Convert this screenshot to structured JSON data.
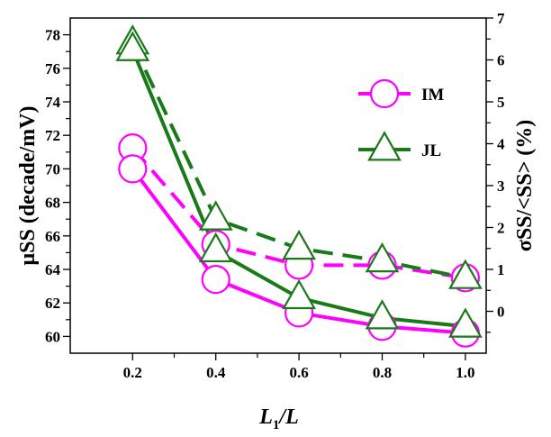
{
  "chart_data": {
    "type": "line",
    "x": [
      0.2,
      0.4,
      0.6,
      0.8,
      1.0
    ],
    "xlabel_main": "L",
    "xlabel_sub": "1",
    "xlabel_tail": "/L",
    "ylabel_left": "μSS (decade/mV)",
    "ylabel_right": "σSS/<SS> (%)",
    "xlim": [
      0.05,
      1.05
    ],
    "ylim_left": [
      59,
      79
    ],
    "ylim_right": [
      -1,
      7
    ],
    "x_ticks": [
      "0.2",
      "0.4",
      "0.6",
      "0.8",
      "1.0"
    ],
    "y_left_ticks": [
      "60",
      "62",
      "64",
      "66",
      "68",
      "70",
      "72",
      "74",
      "76",
      "78"
    ],
    "y_right_ticks": [
      "0",
      "1",
      "2",
      "3",
      "4",
      "5",
      "6",
      "7"
    ],
    "legend_position": "top-right",
    "series": [
      {
        "name": "IM",
        "axis": "left",
        "style": "solid",
        "color": "#ff00ff",
        "marker": "circle",
        "values": [
          70.0,
          63.4,
          61.4,
          60.6,
          60.2
        ]
      },
      {
        "name": "JL",
        "axis": "left",
        "style": "solid",
        "color": "#1a7a1a",
        "marker": "triangle",
        "values": [
          77.1,
          65.1,
          62.3,
          61.1,
          60.6
        ]
      },
      {
        "name": "IM",
        "axis": "right",
        "style": "dashed",
        "color": "#ff00ff",
        "marker": "circle",
        "values": [
          3.9,
          1.6,
          1.1,
          1.1,
          0.8
        ]
      },
      {
        "name": "JL",
        "axis": "right",
        "style": "dashed",
        "color": "#1a7a1a",
        "marker": "triangle",
        "values": [
          6.4,
          2.2,
          1.5,
          1.2,
          0.8
        ]
      }
    ],
    "legend": [
      {
        "label": "IM",
        "color": "#ff00ff",
        "marker": "circle"
      },
      {
        "label": "JL",
        "color": "#1a7a1a",
        "marker": "triangle"
      }
    ]
  }
}
